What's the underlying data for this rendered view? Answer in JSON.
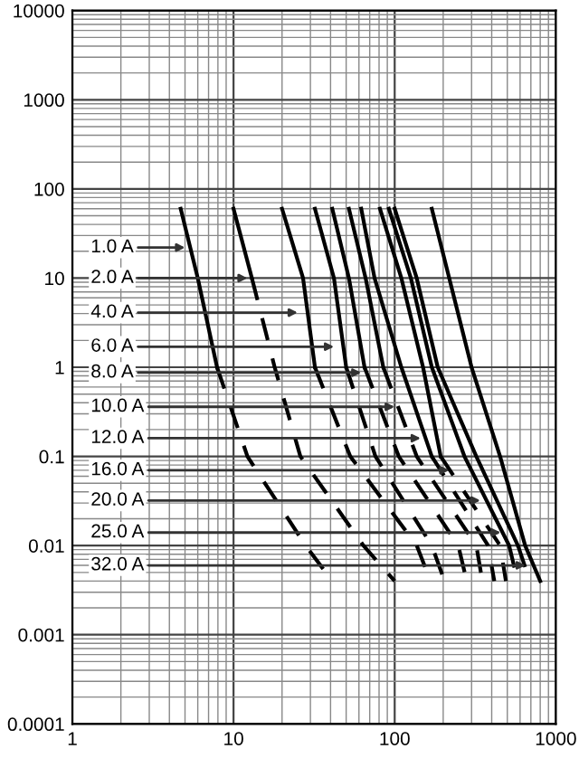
{
  "chart_data": {
    "type": "line",
    "log": "xy",
    "grid": true,
    "xlim": [
      1,
      1000
    ],
    "ylim": [
      0.0001,
      10000
    ],
    "xticks": [
      1,
      10,
      100,
      1000
    ],
    "yticks": [
      0.0001,
      0.001,
      0.01,
      0.1,
      1,
      10,
      100,
      1000,
      10000
    ],
    "series": [
      {
        "color": "#000000",
        "line_style": "solid",
        "x": [
          4.7,
          6,
          7.9
        ],
        "values": [
          60,
          10,
          1
        ]
      },
      {
        "color": "#000000",
        "line_style": "dashed",
        "x": [
          7.9,
          12.2,
          28,
          41
        ],
        "values": [
          1,
          0.1,
          0.01,
          0.004
        ]
      },
      {
        "color": "#000000",
        "line_style": "solid",
        "x": [
          10,
          13
        ],
        "values": [
          60,
          10
        ]
      },
      {
        "color": "#000000",
        "line_style": "dashed",
        "x": [
          13,
          18,
          26,
          64,
          100
        ],
        "values": [
          10,
          1,
          0.1,
          0.01,
          0.004
        ]
      },
      {
        "color": "#000000",
        "line_style": "solid",
        "x": [
          20,
          27,
          32
        ],
        "values": [
          60,
          10,
          1
        ]
      },
      {
        "color": "#000000",
        "line_style": "dashed",
        "x": [
          32,
          53,
          137,
          167
        ],
        "values": [
          1,
          0.1,
          0.01,
          0.004
        ]
      },
      {
        "color": "#000000",
        "line_style": "solid",
        "x": [
          32,
          42,
          50
        ],
        "values": [
          60,
          10,
          1
        ]
      },
      {
        "color": "#000000",
        "line_style": "dashed",
        "x": [
          50,
          76,
          170,
          204
        ],
        "values": [
          1,
          0.1,
          0.01,
          0.004
        ]
      },
      {
        "color": "#000000",
        "line_style": "solid",
        "x": [
          41,
          52,
          65
        ],
        "values": [
          60,
          10,
          1
        ]
      },
      {
        "color": "#000000",
        "line_style": "dashed",
        "x": [
          65,
          106,
          248,
          280
        ],
        "values": [
          1,
          0.1,
          0.01,
          0.004
        ]
      },
      {
        "color": "#000000",
        "line_style": "solid",
        "x": [
          52,
          66,
          85
        ],
        "values": [
          60,
          10,
          1
        ]
      },
      {
        "color": "#000000",
        "line_style": "dashed",
        "x": [
          85,
          137,
          321,
          350
        ],
        "values": [
          1,
          0.1,
          0.01,
          0.004
        ]
      },
      {
        "color": "#000000",
        "line_style": "solid",
        "x": [
          62,
          75,
          110,
          170
        ],
        "values": [
          60,
          10,
          1,
          0.1
        ]
      },
      {
        "color": "#000000",
        "line_style": "dashed",
        "x": [
          170,
          380,
          415
        ],
        "values": [
          0.1,
          0.01,
          0.004
        ]
      },
      {
        "color": "#000000",
        "line_style": "solid",
        "x": [
          81,
          110,
          150,
          193
        ],
        "values": [
          60,
          10,
          1,
          0.1
        ]
      },
      {
        "color": "#000000",
        "line_style": "dashed",
        "x": [
          193,
          451,
          490
        ],
        "values": [
          0.1,
          0.01,
          0.004
        ]
      },
      {
        "color": "#000000",
        "line_style": "solid",
        "x": [
          92,
          126,
          170,
          271,
          513
        ],
        "values": [
          60,
          10,
          1,
          0.1,
          0.01
        ]
      },
      {
        "color": "#000000",
        "line_style": "dashed",
        "x": [
          513,
          580
        ],
        "values": [
          0.01,
          0.004
        ]
      },
      {
        "color": "#000000",
        "line_style": "solid",
        "x": [
          100,
          137,
          185,
          321,
          582
        ],
        "values": [
          60,
          10,
          1,
          0.1,
          0.01
        ]
      },
      {
        "color": "#000000",
        "line_style": "dashed",
        "x": [
          582,
          690
        ],
        "values": [
          0.01,
          0.004
        ]
      },
      {
        "color": "#000000",
        "line_style": "solid",
        "x": [
          170,
          218,
          300,
          451,
          645,
          800
        ],
        "values": [
          60,
          10,
          1,
          0.1,
          0.01,
          0.004
        ]
      }
    ],
    "annotations": [
      {
        "text": "1.0 A",
        "x": 5.0,
        "y": 22
      },
      {
        "text": "2.0 A",
        "x": 12.2,
        "y": 10
      },
      {
        "text": "4.0 A",
        "x": 25,
        "y": 4.1
      },
      {
        "text": "6.0 A",
        "x": 42,
        "y": 1.7
      },
      {
        "text": "8.0 A",
        "x": 62,
        "y": 0.87
      },
      {
        "text": "10.0 A",
        "x": 100,
        "y": 0.36
      },
      {
        "text": "12.0 A",
        "x": 145,
        "y": 0.16
      },
      {
        "text": "16.0 A",
        "x": 218,
        "y": 0.07
      },
      {
        "text": "20.0 A",
        "x": 340,
        "y": 0.032
      },
      {
        "text": "25.0 A",
        "x": 455,
        "y": 0.014
      },
      {
        "text": "32.0 A",
        "x": 650,
        "y": 0.006
      }
    ]
  }
}
